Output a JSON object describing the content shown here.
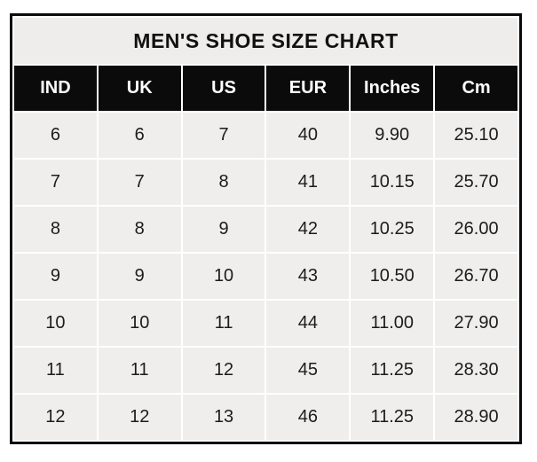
{
  "title": "MEN'S SHOE SIZE CHART",
  "colors": {
    "border": "#0a0a0a",
    "header_bg": "#0b0b0b",
    "header_text": "#ffffff",
    "title_bg": "#eeedeb",
    "cell_bg": "#efeeec",
    "grid_gap": "#ffffff",
    "cell_text": "#1c1c1c"
  },
  "chart_data": {
    "type": "table",
    "title": "MEN'S SHOE SIZE CHART",
    "columns": [
      "IND",
      "UK",
      "US",
      "EUR",
      "Inches",
      "Cm"
    ],
    "rows": [
      [
        "6",
        "6",
        "7",
        "40",
        "9.90",
        "25.10"
      ],
      [
        "7",
        "7",
        "8",
        "41",
        "10.15",
        "25.70"
      ],
      [
        "8",
        "8",
        "9",
        "42",
        "10.25",
        "26.00"
      ],
      [
        "9",
        "9",
        "10",
        "43",
        "10.50",
        "26.70"
      ],
      [
        "10",
        "10",
        "11",
        "44",
        "11.00",
        "27.90"
      ],
      [
        "11",
        "11",
        "12",
        "45",
        "11.25",
        "28.30"
      ],
      [
        "12",
        "12",
        "13",
        "46",
        "11.25",
        "28.90"
      ]
    ]
  }
}
